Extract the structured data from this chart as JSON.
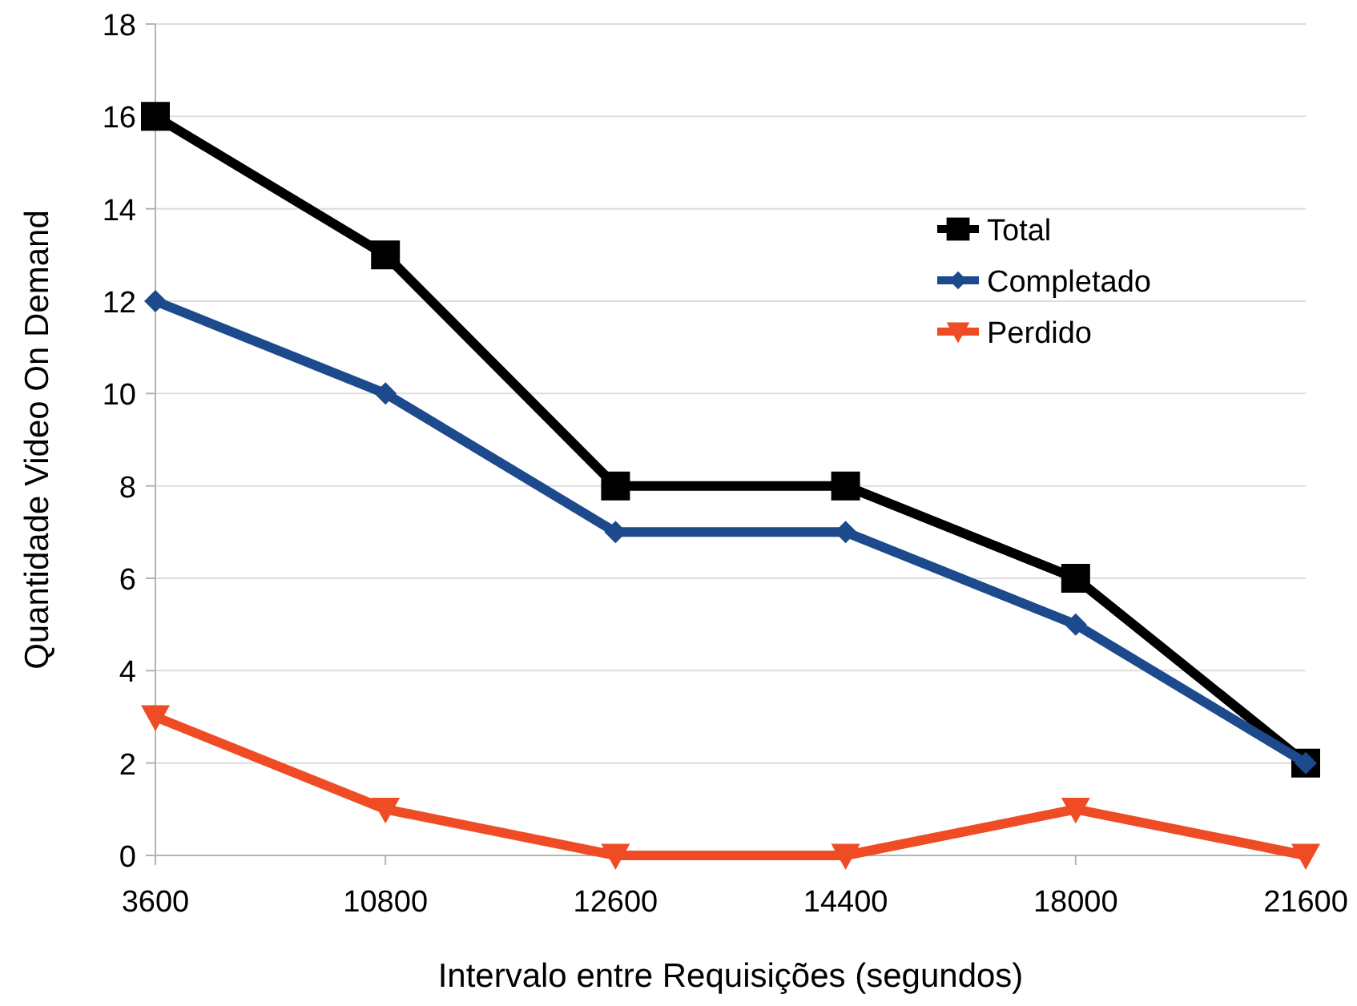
{
  "chart_data": {
    "type": "line",
    "xlabel": "Intervalo entre Requisições (segundos)",
    "ylabel": "Quantidade Video On Demand",
    "categories": [
      "3600",
      "10800",
      "12600",
      "14400",
      "18000",
      "21600"
    ],
    "series": [
      {
        "name": "Total",
        "color": "#000000",
        "marker": "square",
        "values": [
          16,
          13,
          8,
          8,
          6,
          2
        ]
      },
      {
        "name": "Completado",
        "color": "#1c4a8c",
        "marker": "diamond",
        "values": [
          12,
          10,
          7,
          7,
          5,
          2
        ]
      },
      {
        "name": "Perdido",
        "color": "#ef4b24",
        "marker": "triangle",
        "values": [
          3,
          1,
          0,
          0,
          1,
          0
        ]
      }
    ],
    "ylim": [
      0,
      18
    ],
    "yticks": [
      0,
      2,
      4,
      6,
      8,
      10,
      12,
      14,
      16,
      18
    ],
    "grid": "y",
    "legend": "top right",
    "line_style": "solid"
  }
}
